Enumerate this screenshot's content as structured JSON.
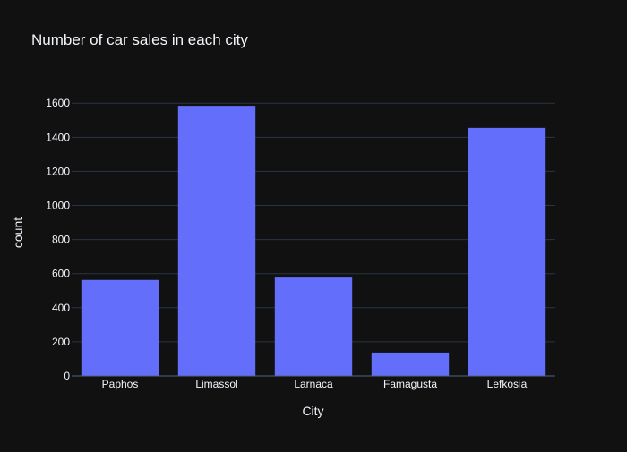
{
  "colors": {
    "background": "#111111",
    "bar": "#636efa",
    "grid": "#283442",
    "text": "#f2f5fa"
  },
  "chart_data": {
    "type": "bar",
    "title": "Number of car sales in each city",
    "xlabel": "City",
    "ylabel": "count",
    "categories": [
      "Paphos",
      "Limassol",
      "Larnaca",
      "Famagusta",
      "Lefkosia"
    ],
    "values": [
      563,
      1585,
      577,
      137,
      1455
    ],
    "ylim": [
      0,
      1600
    ],
    "yticks": [
      0,
      200,
      400,
      600,
      800,
      1000,
      1200,
      1400,
      1600
    ],
    "grid": true,
    "legend": "none"
  }
}
